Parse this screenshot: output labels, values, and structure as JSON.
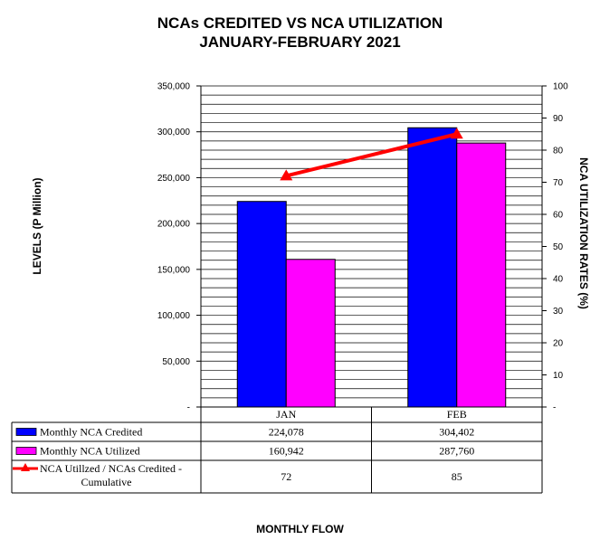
{
  "chart_data": {
    "type": "bar",
    "title": "NCAs CREDITED VS NCA UTILIZATION",
    "subtitle": "JANUARY-FEBRUARY 2021",
    "xlabel": "MONTHLY FLOW",
    "ylabel": "LEVELS (P Million)",
    "y2label": "NCA UTILIZATION RATES (%)",
    "categories": [
      "JAN",
      "FEB"
    ],
    "ylim": [
      0,
      350000
    ],
    "yticks": [
      "-",
      "50,000",
      "100,000",
      "150,000",
      "200,000",
      "250,000",
      "300,000",
      "350,000"
    ],
    "y2lim": [
      0,
      100
    ],
    "y2ticks": [
      "-",
      "10",
      "20",
      "30",
      "40",
      "50",
      "60",
      "70",
      "80",
      "90",
      "100"
    ],
    "grid": true,
    "series": [
      {
        "name": "Monthly NCA Credited",
        "kind": "bar",
        "axis": "left",
        "color": "#0000ff",
        "values": [
          224078,
          304402
        ],
        "labels": [
          "224,078",
          "304,402"
        ]
      },
      {
        "name": "Monthly NCA Utilized",
        "kind": "bar",
        "axis": "left",
        "color": "#ff00ff",
        "values": [
          160942,
          287760
        ],
        "labels": [
          "160,942",
          "287,760"
        ]
      },
      {
        "name": "NCA Utillzed / NCAs Credited - Cumulative",
        "kind": "line",
        "axis": "right",
        "color": "#ff0000",
        "marker": "triangle",
        "values": [
          72,
          85
        ],
        "labels": [
          "72",
          "85"
        ]
      }
    ],
    "legend_placement": "data-table"
  }
}
